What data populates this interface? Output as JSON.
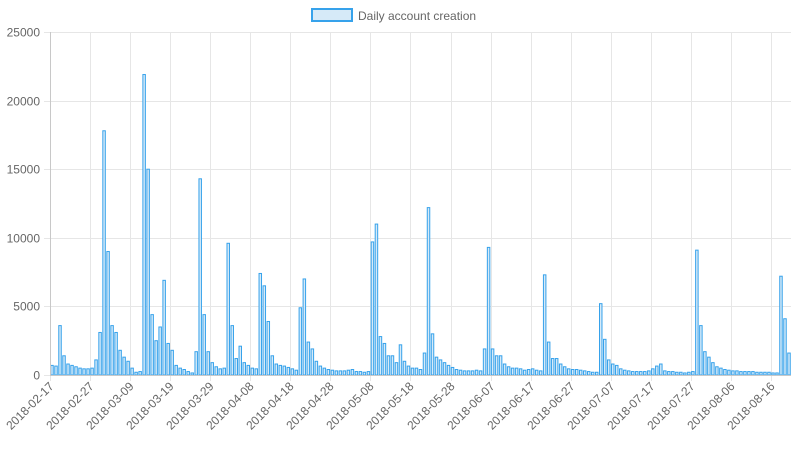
{
  "chart_data": {
    "type": "bar",
    "legend": {
      "label": "Daily account creation",
      "position": "top-center"
    },
    "colors": {
      "bar_fill": "#d6eaf8",
      "bar_stroke": "#36a2eb",
      "grid": "#e6e6e6",
      "axis": "#c8c8c8",
      "text": "#666666"
    },
    "x_start": "2018-02-17",
    "x_tick_labels": [
      "2018-02-17",
      "2018-02-27",
      "2018-03-09",
      "2018-03-19",
      "2018-03-29",
      "2018-04-08",
      "2018-04-18",
      "2018-04-28",
      "2018-05-08",
      "2018-05-18",
      "2018-05-28",
      "2018-06-07",
      "2018-06-17",
      "2018-06-27",
      "2018-07-07",
      "2018-07-17",
      "2018-07-27",
      "2018-08-06",
      "2018-08-16"
    ],
    "y_ticks": [
      0,
      5000,
      10000,
      15000,
      20000,
      25000
    ],
    "ylim": [
      0,
      25000
    ],
    "grid": true,
    "values": [
      700,
      650,
      3600,
      1400,
      800,
      700,
      600,
      500,
      450,
      450,
      500,
      1100,
      3100,
      17800,
      9000,
      3600,
      3100,
      1800,
      1300,
      1000,
      500,
      200,
      250,
      21900,
      15000,
      4400,
      2500,
      3500,
      6900,
      2300,
      1800,
      700,
      500,
      400,
      250,
      150,
      1700,
      14300,
      4400,
      1700,
      900,
      600,
      450,
      500,
      9600,
      3600,
      1200,
      2100,
      900,
      700,
      500,
      450,
      7400,
      6500,
      3900,
      1400,
      800,
      700,
      650,
      550,
      450,
      350,
      4900,
      7000,
      2400,
      1900,
      1000,
      650,
      500,
      400,
      350,
      300,
      300,
      300,
      350,
      400,
      250,
      250,
      200,
      250,
      9700,
      11000,
      2800,
      2300,
      1400,
      1400,
      900,
      2200,
      1000,
      650,
      500,
      500,
      400,
      1600,
      12200,
      3000,
      1300,
      1100,
      900,
      700,
      550,
      400,
      350,
      300,
      300,
      300,
      350,
      300,
      1900,
      9300,
      1900,
      1400,
      1400,
      800,
      600,
      500,
      500,
      450,
      350,
      400,
      450,
      350,
      300,
      7300,
      2400,
      1200,
      1200,
      800,
      600,
      450,
      400,
      400,
      350,
      300,
      250,
      200,
      200,
      5200,
      2600,
      1100,
      800,
      700,
      450,
      350,
      300,
      250,
      250,
      250,
      250,
      300,
      450,
      650,
      800,
      300,
      250,
      250,
      200,
      200,
      150,
      200,
      250,
      9100,
      3600,
      1700,
      1300,
      900,
      600,
      500,
      400,
      350,
      300,
      300,
      250,
      250,
      250,
      250,
      200,
      200,
      200,
      200,
      150,
      150,
      7200,
      4100,
      1600
    ]
  }
}
